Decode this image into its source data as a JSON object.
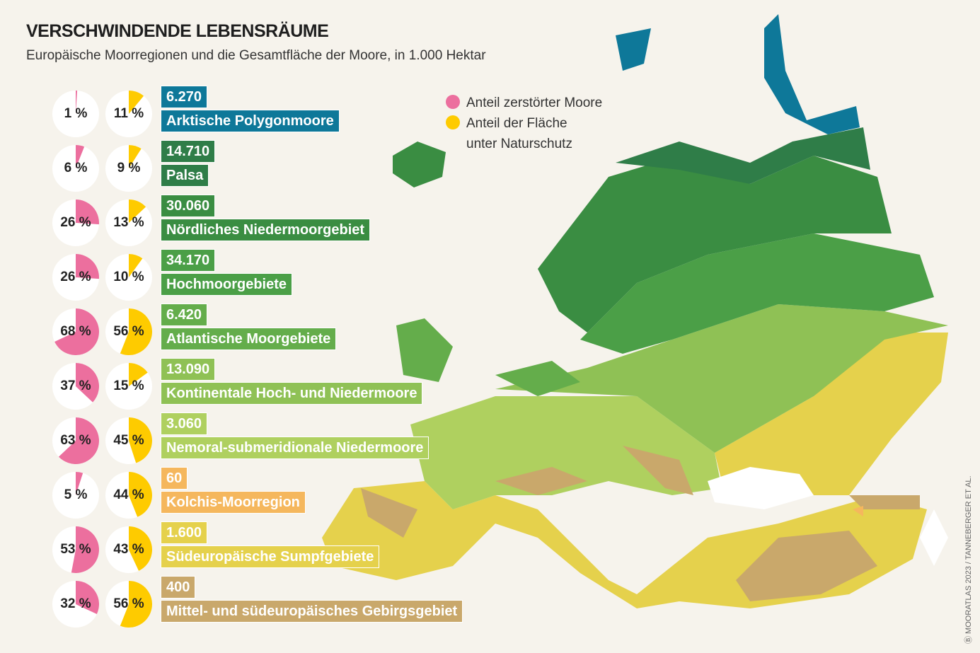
{
  "title": "VERSCHWINDENDE LEBENSRÄUME",
  "subtitle": "Europäische Moorregionen und die Gesamtfläche der Moore, in 1.000 Hektar",
  "legend": {
    "destroyed": "Anteil zerstörter Moore",
    "protected_line1": "Anteil der Fläche",
    "protected_line2": "unter Naturschutz",
    "destroyed_color": "#ec6f9e",
    "protected_color": "#fecb00"
  },
  "credit": "Ⓑ MOORATLAS 2023 / TANNEBERGER ET AL.",
  "chart_data": {
    "type": "pie",
    "regions": [
      {
        "name": "Arktische Polygonmoore",
        "area": "6.270",
        "destroyed": 1,
        "protected": 11,
        "destroyed_label": "1 %",
        "protected_label": "11 %",
        "color": "#0e7899"
      },
      {
        "name": "Palsa",
        "area": "14.710",
        "destroyed": 6,
        "protected": 9,
        "destroyed_label": "6 %",
        "protected_label": "9 %",
        "color": "#2f7d48"
      },
      {
        "name": "Nördliches Niedermoorgebiet",
        "area": "30.060",
        "destroyed": 26,
        "protected": 13,
        "destroyed_label": "26 %",
        "protected_label": "13 %",
        "color": "#3a8d42"
      },
      {
        "name": "Hochmoorgebiete",
        "area": "34.170",
        "destroyed": 26,
        "protected": 10,
        "destroyed_label": "26 %",
        "protected_label": "10 %",
        "color": "#4b9f47"
      },
      {
        "name": "Atlantische Moorgebiete",
        "area": "6.420",
        "destroyed": 68,
        "protected": 56,
        "destroyed_label": "68 %",
        "protected_label": "56 %",
        "color": "#64ad4b"
      },
      {
        "name": "Kontinentale Hoch- und Niedermoore",
        "area": "13.090",
        "destroyed": 37,
        "protected": 15,
        "destroyed_label": "37 %",
        "protected_label": "15 %",
        "color": "#8fc155"
      },
      {
        "name": "Nemoral-submeridionale Niedermoore",
        "area": "3.060",
        "destroyed": 63,
        "protected": 45,
        "destroyed_label": "63 %",
        "protected_label": "45 %",
        "color": "#afd05f"
      },
      {
        "name": "Kolchis-Moorregion",
        "area": "60",
        "destroyed": 5,
        "protected": 44,
        "destroyed_label": "5 %",
        "protected_label": "44 %",
        "color": "#f5b75d"
      },
      {
        "name": "Südeuropäische Sumpfgebiete",
        "area": "1.600",
        "destroyed": 53,
        "protected": 43,
        "destroyed_label": "53 %",
        "protected_label": "43 %",
        "color": "#e5d14c"
      },
      {
        "name": "Mittel- und südeuropäisches Gebirgsgebiet",
        "area": "400",
        "destroyed": 32,
        "protected": 56,
        "destroyed_label": "32 %",
        "protected_label": "56 %",
        "color": "#c9a86b"
      }
    ]
  }
}
